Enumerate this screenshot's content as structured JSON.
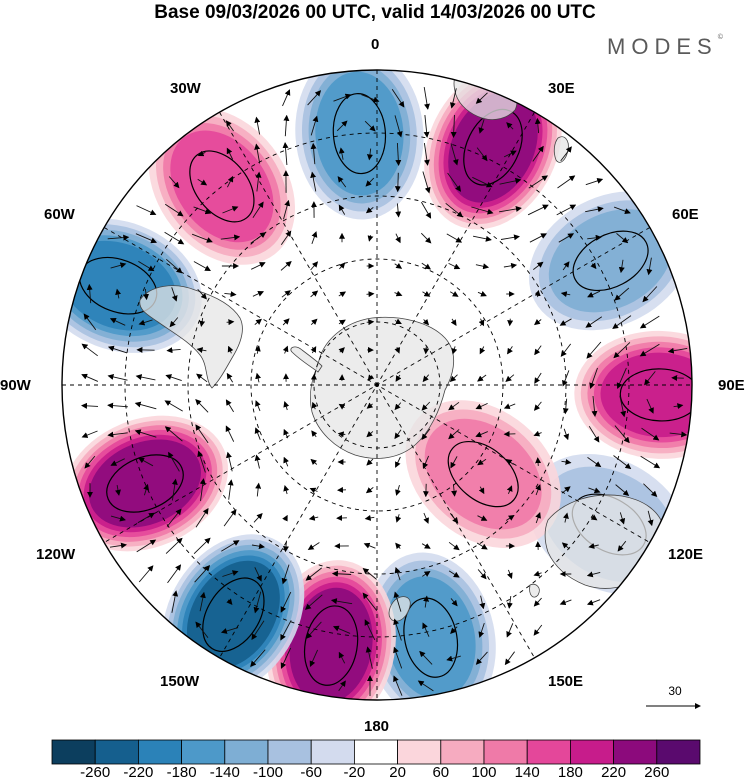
{
  "title": "Base 09/03/2026 00 UTC, valid 14/03/2026 00 UTC",
  "brand": "MODES",
  "brand_mark": "©",
  "longitude_labels": {
    "lon_0": "0",
    "lon_30e": "30E",
    "lon_60e": "60E",
    "lon_90e": "90E",
    "lon_120e": "120E",
    "lon_150e": "150E",
    "lon_180": "180",
    "lon_150w": "150W",
    "lon_120w": "120W",
    "lon_90w": "90W",
    "lon_60w": "60W",
    "lon_30w": "30W"
  },
  "reference_vector": "30",
  "colorbar": {
    "colors": [
      "#0c3e5e",
      "#155f8e",
      "#2b82b8",
      "#4d99c9",
      "#7eaed4",
      "#a8c1e0",
      "#d3dbee",
      "#ffffff",
      "#fbd6dc",
      "#f6abc0",
      "#ef7aa8",
      "#e4479a",
      "#c71c8b",
      "#8c0a7c",
      "#5a0a6e"
    ],
    "ticks": [
      "-260",
      "-220",
      "-180",
      "-140",
      "-100",
      "-60",
      "-20",
      "20",
      "60",
      "100",
      "140",
      "180",
      "220",
      "260"
    ]
  },
  "anomaly_centers": [
    {
      "name": "south-atlantic-west-positive",
      "sign": "positive",
      "lon": -38,
      "lat": -50,
      "value": 150
    },
    {
      "name": "south-atlantic-negative",
      "sign": "negative",
      "lon": -4,
      "lat": -50,
      "value": -170
    },
    {
      "name": "south-atlantic-east-positive",
      "sign": "positive",
      "lon": 26,
      "lat": -48,
      "value": 220
    },
    {
      "name": "indian-ocean-negative",
      "sign": "negative",
      "lon": 62,
      "lat": -48,
      "value": -130
    },
    {
      "name": "indian-ocean-east-positive",
      "sign": "positive",
      "lon": 92,
      "lat": -45,
      "value": 210
    },
    {
      "name": "australia-negative",
      "sign": "negative",
      "lon": 121,
      "lat": -47,
      "value": -90
    },
    {
      "name": "south-of-australia-positive",
      "sign": "positive",
      "lon": 130,
      "lat": -68,
      "value": 110
    },
    {
      "name": "tasman-negative",
      "sign": "negative",
      "lon": 168,
      "lat": -49,
      "value": -150
    },
    {
      "name": "pacific-positive",
      "sign": "positive",
      "lon": -170,
      "lat": -48,
      "value": 240
    },
    {
      "name": "south-pacific-negative",
      "sign": "negative",
      "lon": -148,
      "lat": -47,
      "value": -250
    },
    {
      "name": "southeast-pacific-positive",
      "sign": "positive",
      "lon": -113,
      "lat": -50,
      "value": 230
    },
    {
      "name": "south-america-negative",
      "sign": "negative",
      "lon": -69,
      "lat": -46,
      "value": -200
    }
  ]
}
